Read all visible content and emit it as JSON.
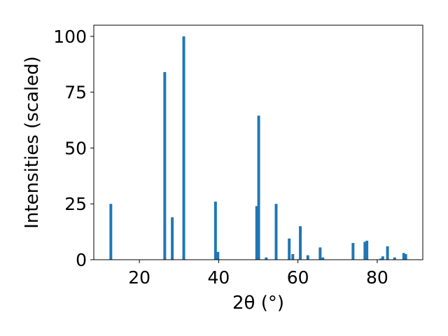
{
  "chart_data": {
    "type": "bar",
    "xlabel": "2θ (°)",
    "ylabel": "Intensities (scaled)",
    "xlim": [
      8.5,
      91.5
    ],
    "ylim": [
      0,
      105
    ],
    "xticks": [
      20,
      40,
      60,
      80
    ],
    "yticks": [
      0,
      25,
      50,
      75,
      100
    ],
    "grid": false,
    "bar_color": "#1f77b4",
    "bar_width": 0.7,
    "x": [
      12.8,
      26.4,
      28.3,
      31.2,
      39.2,
      39.8,
      49.6,
      50.1,
      52.0,
      54.5,
      57.8,
      58.7,
      60.6,
      62.5,
      65.6,
      66.3,
      73.9,
      76.9,
      77.4,
      80.9,
      81.4,
      82.6,
      84.4,
      86.7,
      87.2
    ],
    "values": [
      25,
      84,
      19,
      100,
      26,
      3.5,
      24,
      64.5,
      1,
      25,
      9.5,
      2.5,
      15,
      2,
      5.5,
      1,
      7.5,
      8,
      8.5,
      0.5,
      1.5,
      6,
      1,
      3,
      2.5
    ]
  }
}
